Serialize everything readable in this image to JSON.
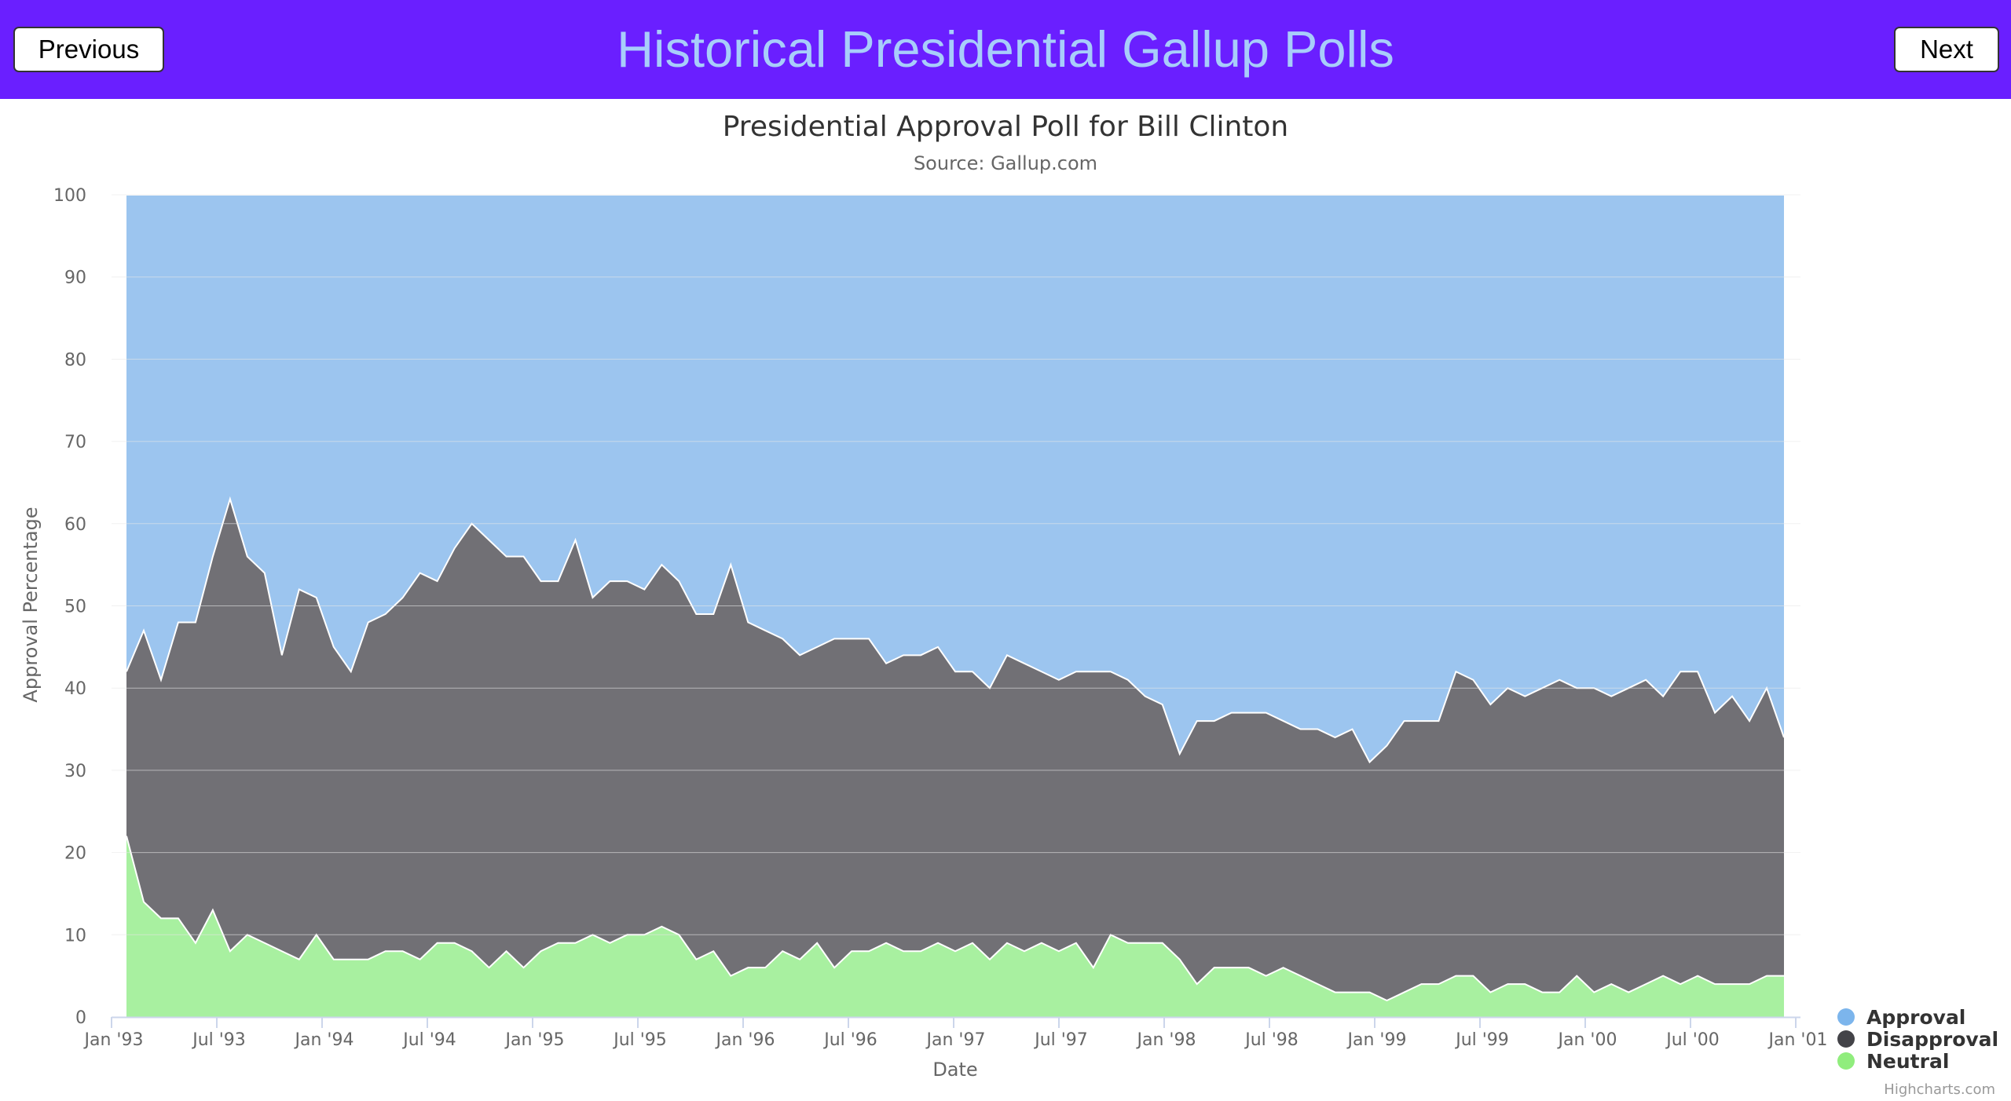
{
  "header": {
    "title": "Historical Presidential Gallup Polls",
    "previous_label": "Previous",
    "next_label": "Next",
    "background_color": "#6a1fff",
    "title_color": "#a8cdfa"
  },
  "chart_data": {
    "type": "area",
    "stacking": "percent",
    "title": "Presidential Approval Poll for Bill Clinton",
    "subtitle": "Source: Gallup.com",
    "xlabel": "Date",
    "ylabel": "Approval Percentage",
    "ylim": [
      0,
      100
    ],
    "yticks": [
      0,
      10,
      20,
      30,
      40,
      50,
      60,
      70,
      80,
      90,
      100
    ],
    "xlim": [
      "1993-01",
      "2001-01"
    ],
    "xticks": [
      "Jan '93",
      "Jul '93",
      "Jan '94",
      "Jul '94",
      "Jan '95",
      "Jul '95",
      "Jan '96",
      "Jul '96",
      "Jan '97",
      "Jul '97",
      "Jan '98",
      "Jul '98",
      "Jan '99",
      "Jul '99",
      "Jan '00",
      "Jul '00",
      "Jan '01"
    ],
    "grid": true,
    "legend_position": "bottom-right",
    "credit": "Highcharts.com",
    "series": [
      {
        "name": "Approval",
        "color": "#9cc5ef"
      },
      {
        "name": "Disapproval",
        "color": "#717075"
      },
      {
        "name": "Neutral",
        "color": "#a8f0a0"
      }
    ],
    "dates": [
      "1993-01",
      "1993-02",
      "1993-03",
      "1993-04",
      "1993-05",
      "1993-06",
      "1993-07",
      "1993-08",
      "1993-09",
      "1993-10",
      "1993-11",
      "1993-12",
      "1994-01",
      "1994-02",
      "1994-03",
      "1994-04",
      "1994-05",
      "1994-06",
      "1994-07",
      "1994-08",
      "1994-09",
      "1994-10",
      "1994-11",
      "1994-12",
      "1995-01",
      "1995-02",
      "1995-03",
      "1995-04",
      "1995-05",
      "1995-06",
      "1995-07",
      "1995-08",
      "1995-09",
      "1995-10",
      "1995-11",
      "1995-12",
      "1996-01",
      "1996-02",
      "1996-03",
      "1996-04",
      "1996-05",
      "1996-06",
      "1996-07",
      "1996-08",
      "1996-09",
      "1996-10",
      "1996-11",
      "1996-12",
      "1997-01",
      "1997-02",
      "1997-03",
      "1997-04",
      "1997-05",
      "1997-06",
      "1997-07",
      "1997-08",
      "1997-09",
      "1997-10",
      "1997-11",
      "1997-12",
      "1998-01",
      "1998-02",
      "1998-03",
      "1998-04",
      "1998-05",
      "1998-06",
      "1998-07",
      "1998-08",
      "1998-09",
      "1998-10",
      "1998-11",
      "1998-12",
      "1999-01",
      "1999-02",
      "1999-03",
      "1999-04",
      "1999-05",
      "1999-06",
      "1999-07",
      "1999-08",
      "1999-09",
      "1999-10",
      "1999-11",
      "1999-12",
      "2000-01",
      "2000-02",
      "2000-03",
      "2000-04",
      "2000-05",
      "2000-06",
      "2000-07",
      "2000-08",
      "2000-09",
      "2000-10",
      "2000-11",
      "2000-12",
      "2001-01"
    ],
    "neutral_percent": [
      22,
      14,
      12,
      12,
      9,
      13,
      8,
      10,
      9,
      8,
      7,
      10,
      7,
      7,
      7,
      8,
      8,
      7,
      9,
      9,
      8,
      6,
      8,
      6,
      8,
      9,
      9,
      10,
      9,
      10,
      10,
      11,
      10,
      7,
      8,
      5,
      6,
      6,
      8,
      7,
      9,
      6,
      8,
      8,
      9,
      8,
      8,
      9,
      8,
      9,
      7,
      9,
      8,
      9,
      8,
      9,
      6,
      10,
      9,
      9,
      9,
      7,
      4,
      6,
      6,
      6,
      5,
      6,
      5,
      4,
      3,
      3,
      3,
      2,
      3,
      4,
      4,
      5,
      5,
      3,
      4,
      4,
      3,
      3,
      5,
      3,
      4,
      3,
      4,
      5,
      4,
      5,
      4,
      4,
      4,
      5,
      5
    ],
    "disapproval_percent": [
      20,
      33,
      29,
      36,
      39,
      43,
      55,
      46,
      45,
      36,
      45,
      41,
      38,
      35,
      41,
      41,
      43,
      47,
      44,
      48,
      52,
      52,
      48,
      50,
      45,
      44,
      49,
      41,
      44,
      43,
      42,
      44,
      43,
      42,
      41,
      50,
      42,
      41,
      38,
      37,
      36,
      40,
      38,
      38,
      34,
      36,
      36,
      36,
      34,
      33,
      33,
      35,
      35,
      33,
      33,
      33,
      36,
      32,
      32,
      30,
      29,
      25,
      32,
      30,
      31,
      31,
      32,
      30,
      30,
      31,
      31,
      32,
      28,
      31,
      33,
      32,
      32,
      37,
      36,
      35,
      36,
      35,
      37,
      38,
      35,
      37,
      35,
      37,
      37,
      34,
      38,
      37,
      33,
      35,
      32,
      35,
      29
    ],
    "approval_percent": [
      58,
      53,
      59,
      52,
      52,
      44,
      37,
      44,
      46,
      56,
      48,
      49,
      55,
      58,
      52,
      51,
      49,
      46,
      47,
      43,
      40,
      42,
      44,
      44,
      47,
      47,
      42,
      49,
      47,
      47,
      48,
      45,
      47,
      51,
      51,
      45,
      52,
      53,
      54,
      56,
      55,
      54,
      54,
      54,
      57,
      56,
      56,
      55,
      58,
      58,
      60,
      56,
      57,
      58,
      59,
      58,
      58,
      58,
      59,
      61,
      62,
      68,
      64,
      64,
      63,
      63,
      63,
      64,
      65,
      65,
      66,
      65,
      69,
      67,
      64,
      64,
      64,
      58,
      59,
      62,
      60,
      61,
      60,
      59,
      60,
      60,
      62,
      60,
      59,
      61,
      58,
      58,
      63,
      61,
      64,
      60,
      66
    ]
  }
}
